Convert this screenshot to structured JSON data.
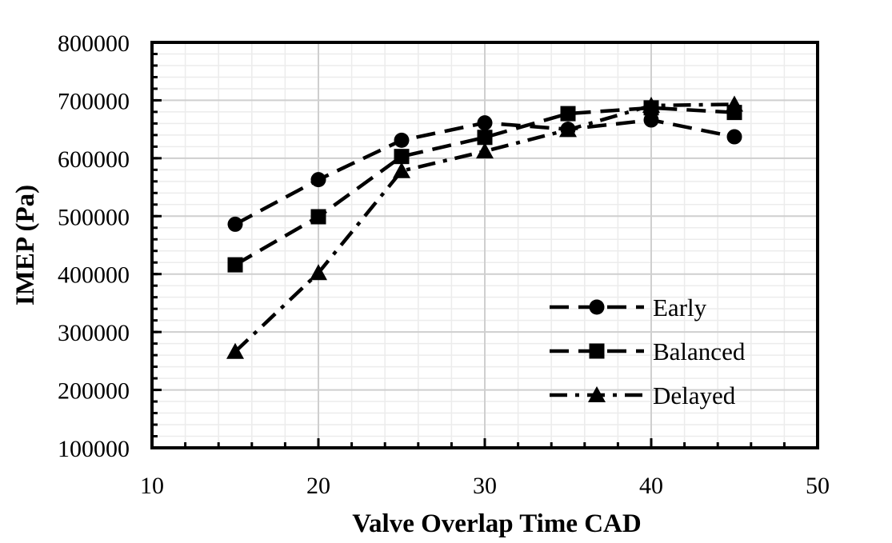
{
  "chart_data": {
    "type": "line",
    "title": "",
    "xlabel": "Valve Overlap Time CAD",
    "ylabel": "IMEP (Pa)",
    "xlim": [
      10,
      50
    ],
    "ylim": [
      100000,
      800000
    ],
    "x_ticks": [
      10,
      20,
      30,
      40,
      50
    ],
    "y_ticks": [
      100000,
      200000,
      300000,
      400000,
      500000,
      600000,
      700000,
      800000
    ],
    "x_tick_labels": [
      "10",
      "20",
      "30",
      "40",
      "50"
    ],
    "y_tick_labels": [
      "100000",
      "200000",
      "300000",
      "400000",
      "500000",
      "600000",
      "700000",
      "800000"
    ],
    "grid": true,
    "legend_position": "bottom-right",
    "x": [
      15,
      20,
      25,
      30,
      35,
      40,
      45
    ],
    "series": [
      {
        "name": "Early",
        "marker": "circle",
        "line_style": "dashed",
        "values": [
          486000,
          563000,
          631000,
          661000,
          650000,
          666000,
          637000
        ]
      },
      {
        "name": "Balanced",
        "marker": "square",
        "line_style": "dashed",
        "values": [
          416000,
          499000,
          603000,
          636000,
          677000,
          687000,
          679000
        ]
      },
      {
        "name": "Delayed",
        "marker": "triangle",
        "line_style": "dash-dot",
        "values": [
          266000,
          402000,
          578000,
          612000,
          649000,
          691000,
          693000
        ]
      }
    ]
  }
}
